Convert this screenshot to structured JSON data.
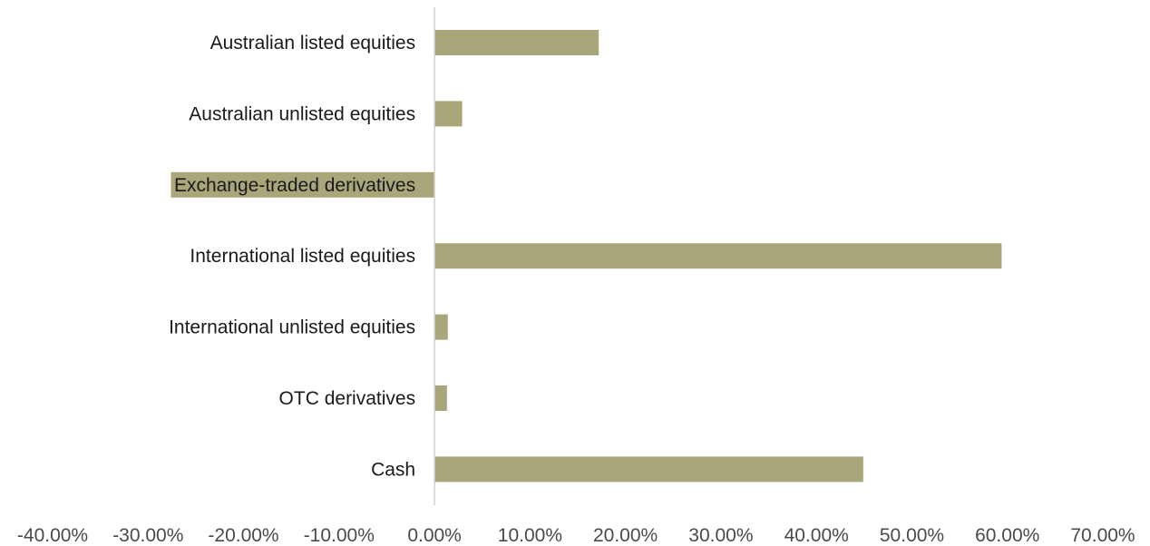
{
  "chart_data": {
    "type": "bar",
    "orientation": "horizontal",
    "categories": [
      "Australian listed equities",
      "Australian unlisted equities",
      "Exchange-traded derivatives",
      "International listed equities",
      "International unlisted equities",
      "OTC derivatives",
      "Cash"
    ],
    "values": [
      17.2,
      2.9,
      -27.6,
      59.4,
      1.4,
      1.3,
      44.9
    ],
    "xlim": [
      -40,
      70
    ],
    "xticks": [
      -40,
      -30,
      -20,
      -10,
      0,
      10,
      20,
      30,
      40,
      50,
      60,
      70
    ],
    "xtick_labels": [
      "-40.00%",
      "-30.00%",
      "-20.00%",
      "-10.00%",
      "0.00%",
      "10.00%",
      "20.00%",
      "30.00%",
      "40.00%",
      "50.00%",
      "60.00%",
      "70.00%"
    ],
    "grid": false,
    "legend": "none",
    "title": "",
    "xlabel": "",
    "ylabel": "",
    "colors": {
      "bar": "#a9a67a",
      "axis": "#d0d0d0"
    }
  }
}
